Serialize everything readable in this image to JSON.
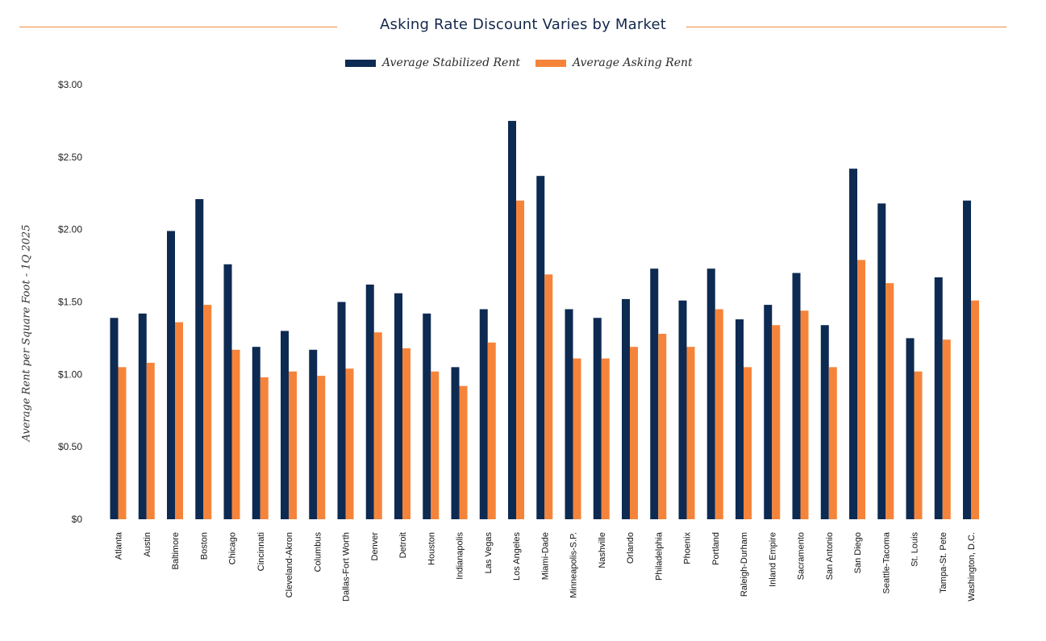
{
  "colors": {
    "stabilized": "#0d2a52",
    "asking": "#f5843a",
    "accent_rule": "#f08a3c",
    "title": "#14284b"
  },
  "chart_data": {
    "type": "bar",
    "title": "Asking Rate Discount Varies by Market",
    "xlabel": "",
    "ylabel": "Average Rent per Square Foot - 1Q 2025",
    "ylim": [
      0,
      3.0
    ],
    "yticks": [
      {
        "value": 0,
        "label": "$0"
      },
      {
        "value": 0.5,
        "label": "$0.50"
      },
      {
        "value": 1.0,
        "label": "$1.00"
      },
      {
        "value": 1.5,
        "label": "$1.50"
      },
      {
        "value": 2.0,
        "label": "$2.00"
      },
      {
        "value": 2.5,
        "label": "$2.50"
      },
      {
        "value": 3.0,
        "label": "$3.00"
      }
    ],
    "grid": false,
    "legend_position": "top-center",
    "categories": [
      "Atlanta",
      "Austin",
      "Baltimore",
      "Boston",
      "Chicago",
      "Cincinnati",
      "Cleveland-Akron",
      "Columbus",
      "Dallas-Fort Worth",
      "Denver",
      "Detroit",
      "Houston",
      "Indianapolis",
      "Las Vegas",
      "Los Angeles",
      "Miami-Dade",
      "Minneapolis-S.P.",
      "Nashville",
      "Orlando",
      "Philadelphia",
      "Phoenix",
      "Portland",
      "Raleigh-Durham",
      "Inland Empire",
      "Sacramento",
      "San Antonio",
      "San Diego",
      "Seattle-Tacoma",
      "St. Louis",
      "Tampa-St. Pete",
      "Washington, D.C."
    ],
    "series": [
      {
        "name": "Average Stabilized Rent",
        "color": "#0d2a52",
        "values": [
          1.39,
          1.42,
          1.99,
          2.21,
          1.76,
          1.19,
          1.3,
          1.17,
          1.5,
          1.62,
          1.56,
          1.42,
          1.05,
          1.45,
          2.75,
          2.37,
          1.45,
          1.39,
          1.52,
          1.73,
          1.51,
          1.73,
          1.38,
          1.48,
          1.7,
          1.34,
          2.42,
          2.18,
          1.25,
          1.67,
          2.2
        ]
      },
      {
        "name": "Average Asking Rent",
        "color": "#f5843a",
        "values": [
          1.05,
          1.08,
          1.36,
          1.48,
          1.17,
          0.98,
          1.02,
          0.99,
          1.04,
          1.29,
          1.18,
          1.02,
          0.92,
          1.22,
          2.2,
          1.69,
          1.11,
          1.11,
          1.19,
          1.28,
          1.19,
          1.45,
          1.05,
          1.34,
          1.44,
          1.05,
          1.79,
          1.63,
          1.02,
          1.24,
          1.51
        ]
      }
    ]
  }
}
